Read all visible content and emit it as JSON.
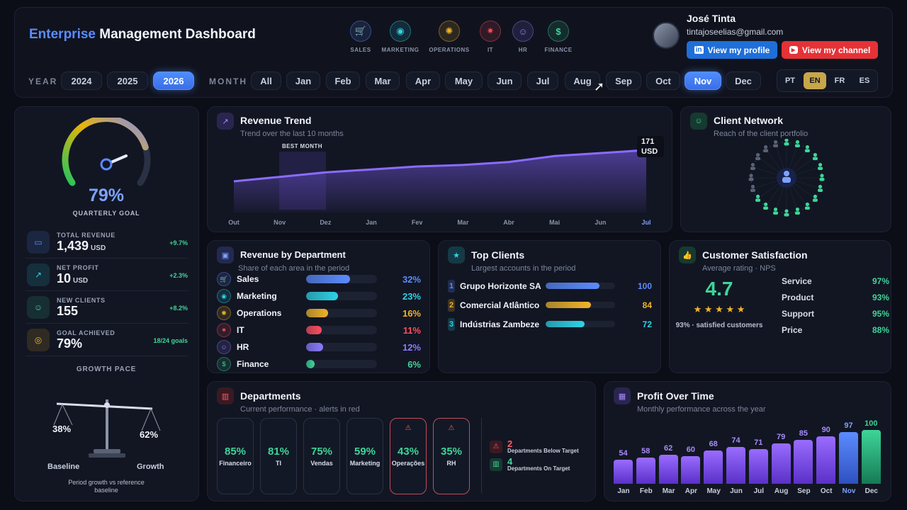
{
  "header": {
    "title_accent": "Enterprise",
    "title_main": "Management Dashboard",
    "nav": [
      {
        "label": "SALES",
        "icon": "cart-icon",
        "glyph": "🛒",
        "color": "#5b8cff"
      },
      {
        "label": "MARKETING",
        "icon": "megaphone-icon",
        "glyph": "◉",
        "color": "#2dd4e6"
      },
      {
        "label": "OPERATIONS",
        "icon": "gear-icon",
        "glyph": "✺",
        "color": "#f0b429"
      },
      {
        "label": "IT",
        "icon": "bug-icon",
        "glyph": "✷",
        "color": "#ff4d5e"
      },
      {
        "label": "HR",
        "icon": "people-icon",
        "glyph": "☺",
        "color": "#8b7bff"
      },
      {
        "label": "FINANCE",
        "icon": "dollar-icon",
        "glyph": "$",
        "color": "#3ed598"
      }
    ],
    "user": {
      "name": "José Tinta",
      "email": "tintajoseelias@gmail.com",
      "profile_btn": "View my profile",
      "channel_btn": "View my channel"
    }
  },
  "filters": {
    "year_label": "YEAR",
    "years": [
      "2024",
      "2025",
      "2026"
    ],
    "active_year": "2026",
    "month_label": "MONTH",
    "months": [
      "All",
      "Jan",
      "Feb",
      "Mar",
      "Apr",
      "May",
      "Jun",
      "Jul",
      "Aug",
      "Sep",
      "Oct",
      "Nov",
      "Dec"
    ],
    "active_month": "Nov",
    "languages": [
      "PT",
      "EN",
      "FR",
      "ES"
    ],
    "active_language": "EN"
  },
  "goal": {
    "percent": "79%",
    "label": "QUARTERLY GOAL",
    "value": 79
  },
  "kpis": [
    {
      "label": "TOTAL REVENUE",
      "value": "1,439",
      "unit": "USD",
      "delta": "+9.7%",
      "icon": "card-icon",
      "color": "#5b8cff"
    },
    {
      "label": "NET PROFIT",
      "value": "10",
      "unit": "USD",
      "delta": "+2.3%",
      "icon": "trend-up-icon",
      "color": "#2dd4e6"
    },
    {
      "label": "NEW CLIENTS",
      "value": "155",
      "unit": "",
      "delta": "+8.2%",
      "icon": "people-icon",
      "color": "#3ed598"
    },
    {
      "label": "GOAL ACHIEVED",
      "value": "79%",
      "unit": "",
      "delta": "18/24 goals",
      "icon": "target-icon",
      "color": "#f0b429"
    }
  ],
  "growth": {
    "title": "GROWTH PACE",
    "left_pct": "38%",
    "right_pct": "62%",
    "left_label": "Baseline",
    "right_label": "Growth",
    "caption_1": "Period growth vs reference",
    "caption_2": "baseline"
  },
  "revenue_trend": {
    "title": "Revenue Trend",
    "subtitle": "Trend over the last 10 months",
    "best_label": "BEST MONTH",
    "end_value": "171",
    "end_unit": "USD",
    "x_labels": [
      "Out",
      "Nov",
      "Dez",
      "Jan",
      "Fev",
      "Mar",
      "Abr",
      "Mai",
      "Jun",
      "Jul"
    ]
  },
  "client_network": {
    "title": "Client Network",
    "subtitle": "Reach of the client portfolio"
  },
  "revenue_by_department": {
    "title": "Revenue by Department",
    "subtitle": "Share of each area in the period",
    "items": [
      {
        "name": "Sales",
        "pct": "32%",
        "value": 0.62,
        "color": "#5b8cff",
        "icon": "cart-icon",
        "glyph": "🛒"
      },
      {
        "name": "Marketing",
        "pct": "23%",
        "value": 0.45,
        "color": "#2dd4e6",
        "icon": "megaphone-icon",
        "glyph": "◉"
      },
      {
        "name": "Operations",
        "pct": "16%",
        "value": 0.31,
        "color": "#f0b429",
        "icon": "gear-icon",
        "glyph": "✺"
      },
      {
        "name": "IT",
        "pct": "11%",
        "value": 0.22,
        "color": "#ff4d5e",
        "icon": "bug-icon",
        "glyph": "✷"
      },
      {
        "name": "HR",
        "pct": "12%",
        "value": 0.24,
        "color": "#8b7bff",
        "icon": "people-icon",
        "glyph": "☺"
      },
      {
        "name": "Finance",
        "pct": "6%",
        "value": 0.12,
        "color": "#3ed598",
        "icon": "dollar-icon",
        "glyph": "$"
      }
    ]
  },
  "top_clients": {
    "title": "Top Clients",
    "subtitle": "Largest accounts in the period",
    "items": [
      {
        "rank": "1",
        "name": "Grupo Horizonte SA",
        "value": "100",
        "fill": 1.0,
        "color": "#5b8cff"
      },
      {
        "rank": "2",
        "name": "Comercial Atlântico l",
        "value": "84",
        "fill": 0.84,
        "color": "#f0b429"
      },
      {
        "rank": "3",
        "name": "Indústrias Zambeze",
        "value": "72",
        "fill": 0.72,
        "color": "#2dd4e6"
      }
    ]
  },
  "satisfaction": {
    "title": "Customer Satisfaction",
    "subtitle": "Average rating · NPS",
    "score": "4.7",
    "stars": "★ ★ ★ ★ ★",
    "caption": "93% · satisfied customers",
    "items": [
      {
        "label": "Service",
        "value": "97%"
      },
      {
        "label": "Product",
        "value": "93%"
      },
      {
        "label": "Support",
        "value": "95%"
      },
      {
        "label": "Price",
        "value": "88%"
      }
    ]
  },
  "departments": {
    "title": "Departments",
    "subtitle": "Current performance · alerts in red",
    "cards": [
      {
        "value": "85%",
        "name": "Financeiro",
        "alert": false
      },
      {
        "value": "81%",
        "name": "TI",
        "alert": false
      },
      {
        "value": "75%",
        "name": "Vendas",
        "alert": false
      },
      {
        "value": "59%",
        "name": "Marketing",
        "alert": false
      },
      {
        "value": "43%",
        "name": "Operações",
        "alert": true
      },
      {
        "value": "35%",
        "name": "RH",
        "alert": true
      }
    ],
    "below_count": "2",
    "below_label": "Departments Below Target",
    "on_count": "4",
    "on_label": "Departments On Target"
  },
  "profit": {
    "title": "Profit Over Time",
    "subtitle": "Monthly performance across the year"
  },
  "chart_data": [
    {
      "type": "area",
      "title": "Revenue Trend",
      "categories": [
        "Out",
        "Nov",
        "Dez",
        "Jan",
        "Fev",
        "Mar",
        "Abr",
        "Mai",
        "Jun",
        "Jul"
      ],
      "values": [
        150,
        153,
        156,
        158,
        160,
        161,
        163,
        167,
        169,
        171
      ],
      "ylim": [
        0,
        200
      ]
    },
    {
      "type": "bar",
      "title": "Profit Over Time",
      "categories": [
        "Jan",
        "Feb",
        "Mar",
        "Apr",
        "May",
        "Jun",
        "Jul",
        "Aug",
        "Sep",
        "Oct",
        "Nov",
        "Dec"
      ],
      "values": [
        54,
        58,
        62,
        60,
        68,
        74,
        71,
        79,
        85,
        90,
        97,
        100
      ],
      "ylim": [
        0,
        100
      ]
    }
  ]
}
